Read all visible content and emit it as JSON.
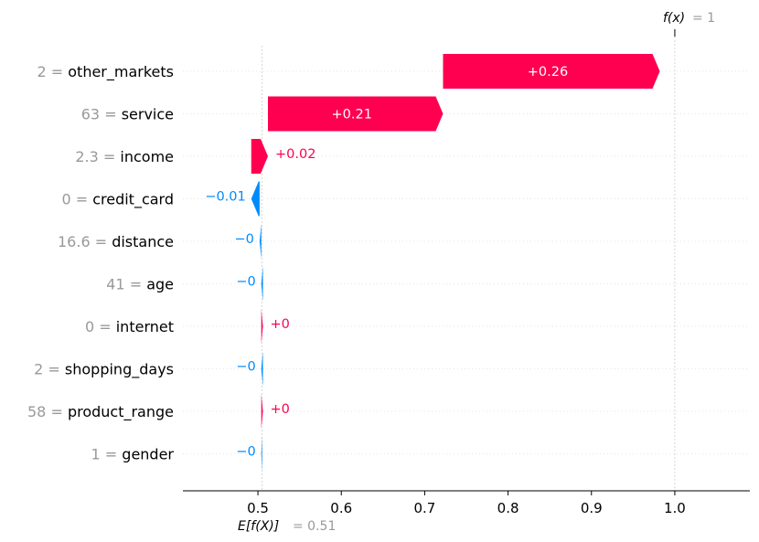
{
  "chart_data": {
    "type": "waterfall",
    "base_value": 0.505,
    "final_value": 1.0,
    "expected_label_lhs": "E[f(X)]",
    "expected_label_rhs": "= 0.51",
    "fx_label_lhs": "f(x)",
    "fx_label_rhs": "= 1",
    "xlim": [
      0.41,
      1.09
    ],
    "xticks": [
      0.5,
      0.6,
      0.7,
      0.8,
      0.9,
      1.0
    ],
    "xtick_labels": [
      "0.5",
      "0.6",
      "0.7",
      "0.8",
      "0.9",
      "1.0"
    ],
    "features": [
      {
        "value": "2 =",
        "name": "other_markets",
        "contribution": 0.26,
        "label": "+0.26"
      },
      {
        "value": "63 =",
        "name": "service",
        "contribution": 0.21,
        "label": "+0.21"
      },
      {
        "value": "2.3 =",
        "name": "income",
        "contribution": 0.02,
        "label": "+0.02"
      },
      {
        "value": "0 =",
        "name": "credit_card",
        "contribution": -0.01,
        "label": "−0.01"
      },
      {
        "value": "16.6 =",
        "name": "distance",
        "contribution": -0.002,
        "label": "−0"
      },
      {
        "value": "41 =",
        "name": "age",
        "contribution": -0.002,
        "label": "−0"
      },
      {
        "value": "0 =",
        "name": "internet",
        "contribution": 0.002,
        "label": "+0"
      },
      {
        "value": "2 =",
        "name": "shopping_days",
        "contribution": -0.002,
        "label": "−0"
      },
      {
        "value": "58 =",
        "name": "product_range",
        "contribution": 0.002,
        "label": "+0"
      },
      {
        "value": "1 =",
        "name": "gender",
        "contribution": -0.001,
        "label": "−0"
      }
    ],
    "colors": {
      "positive": "#ff0051",
      "negative": "#008bfb",
      "feature_value": "#999999",
      "feature_name": "#000000",
      "grid": "#cccccc"
    }
  }
}
